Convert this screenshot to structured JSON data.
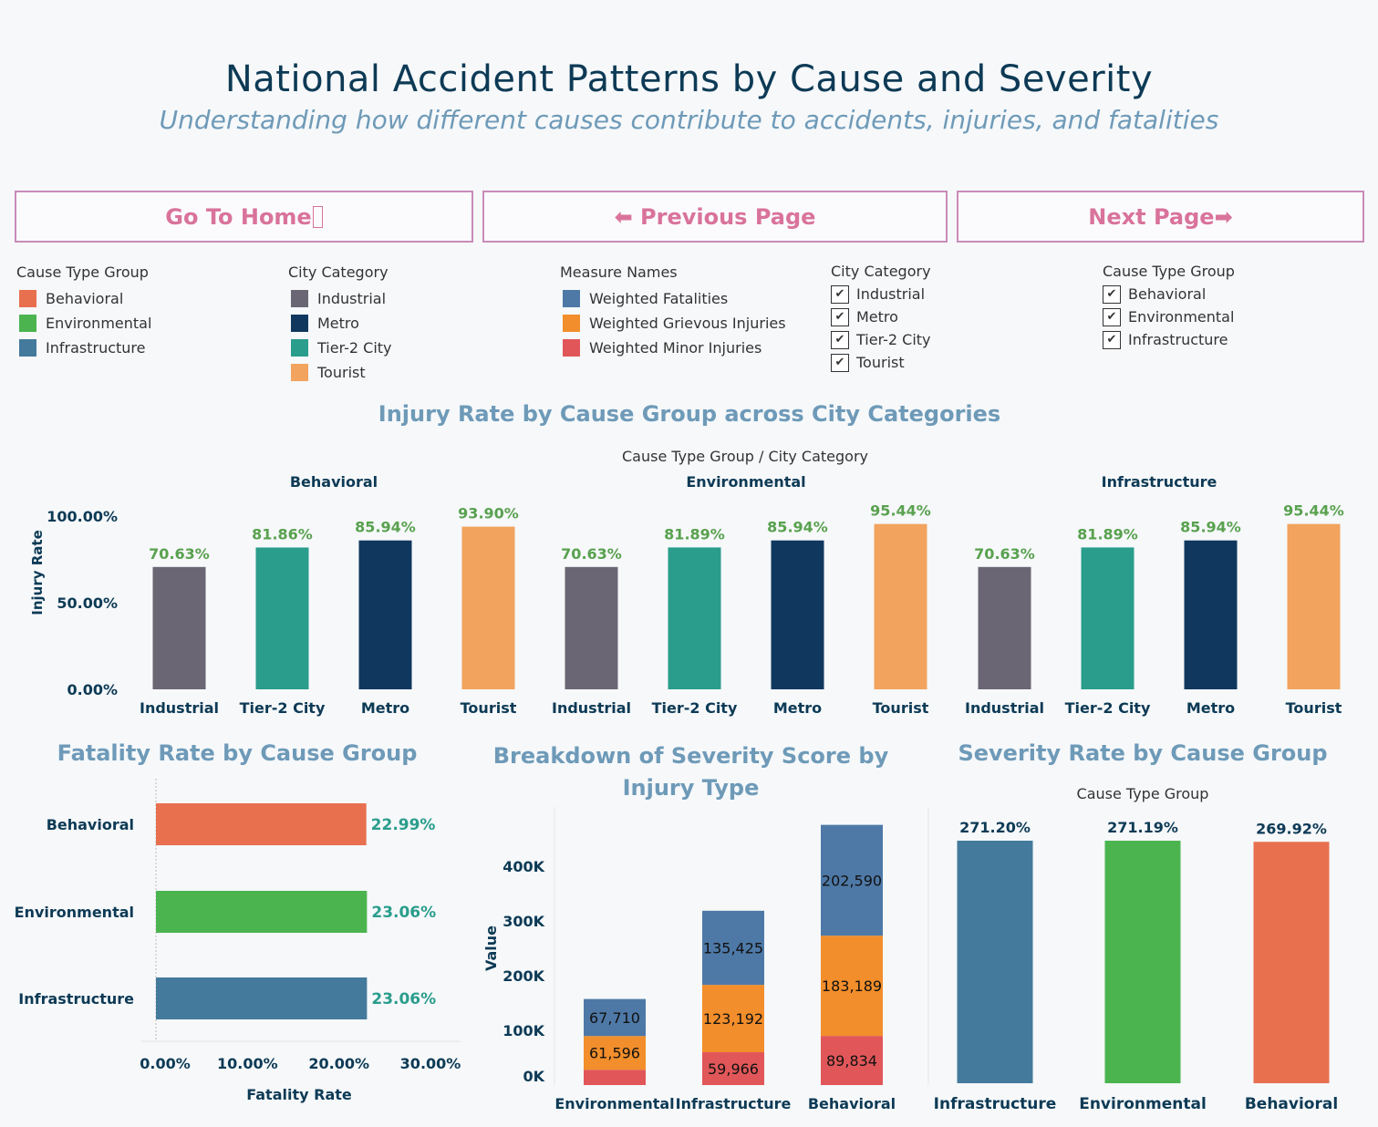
{
  "header": {
    "title": "National Accident Patterns by Cause and Severity",
    "subtitle": "Understanding how different causes contribute to accidents, injuries, and fatalities"
  },
  "nav": {
    "home_label": "Go To Home ",
    "home_icon": "home-icon",
    "prev_label": "⬅ Previous Page",
    "next_label": "Next Page➡"
  },
  "legends": {
    "cause_type_group": {
      "title": "Cause Type Group",
      "items": [
        {
          "label": "Behavioral",
          "color": "#e8704f"
        },
        {
          "label": "Environmental",
          "color": "#4bb44f"
        },
        {
          "label": "Infrastructure",
          "color": "#447a9c"
        }
      ]
    },
    "city_category": {
      "title": "City Category",
      "items": [
        {
          "label": "Industrial",
          "color": "#6b6674"
        },
        {
          "label": "Metro",
          "color": "#10385e"
        },
        {
          "label": "Tier-2 City",
          "color": "#2a9d8c"
        },
        {
          "label": "Tourist",
          "color": "#f2a35e"
        }
      ]
    },
    "measure_names": {
      "title": "Measure Names",
      "items": [
        {
          "label": "Weighted Fatalities",
          "color": "#4e79a7"
        },
        {
          "label": "Weighted Grievous Injuries",
          "color": "#f28e2b"
        },
        {
          "label": "Weighted Minor Injuries",
          "color": "#e15759"
        }
      ]
    }
  },
  "filters": {
    "city_category": {
      "title": "City Category",
      "items": [
        "Industrial",
        "Metro",
        "Tier-2 City",
        "Tourist"
      ]
    },
    "cause_type_group": {
      "title": "Cause Type Group",
      "items": [
        "Behavioral",
        "Environmental",
        "Infrastructure"
      ]
    }
  },
  "chart_data": [
    {
      "type": "bar",
      "title": "Injury Rate by Cause Group across City Categories",
      "header": "Cause Type Group  /  City Category",
      "ylabel": "Injury Rate",
      "yticks": [
        "0.00%",
        "50.00%",
        "100.00%"
      ],
      "ylim": [
        0,
        100
      ],
      "panels": [
        {
          "group": "Behavioral",
          "categories": [
            "Industrial",
            "Tier-2 City",
            "Metro",
            "Tourist"
          ],
          "values": [
            70.63,
            81.86,
            85.94,
            93.9
          ],
          "labels": [
            "70.63%",
            "81.86%",
            "85.94%",
            "93.90%"
          ]
        },
        {
          "group": "Environmental",
          "categories": [
            "Industrial",
            "Tier-2 City",
            "Metro",
            "Tourist"
          ],
          "values": [
            70.63,
            81.89,
            85.94,
            95.44
          ],
          "labels": [
            "70.63%",
            "81.89%",
            "85.94%",
            "95.44%"
          ]
        },
        {
          "group": "Infrastructure",
          "categories": [
            "Industrial",
            "Tier-2 City",
            "Metro",
            "Tourist"
          ],
          "values": [
            70.63,
            81.89,
            85.94,
            95.44
          ],
          "labels": [
            "70.63%",
            "81.89%",
            "85.94%",
            "95.44%"
          ]
        }
      ]
    },
    {
      "type": "bar",
      "orientation": "horizontal",
      "title": "Fatality Rate by Cause Group",
      "xlabel": "Fatality Rate",
      "xticks": [
        "0.00%",
        "10.00%",
        "20.00%",
        "30.00%"
      ],
      "xlim": [
        0,
        30
      ],
      "categories": [
        "Behavioral",
        "Environmental",
        "Infrastructure"
      ],
      "values": [
        22.99,
        23.06,
        23.06
      ],
      "labels": [
        "22.99%",
        "23.06%",
        "23.06%"
      ]
    },
    {
      "type": "bar",
      "stacked": true,
      "title": "Breakdown of Severity Score by Injury Type",
      "ylabel": "Value",
      "yticks": [
        "0K",
        "100K",
        "200K",
        "300K",
        "400K"
      ],
      "categories": [
        "Environmental",
        "Infrastructure",
        "Behavioral"
      ],
      "series": [
        {
          "name": "Weighted Minor Injuries",
          "values": [
            28000,
            59966,
            89834
          ],
          "labels": [
            "",
            "59,966",
            "89,834"
          ]
        },
        {
          "name": "Weighted Grievous Injuries",
          "values": [
            61596,
            123192,
            183189
          ],
          "labels": [
            "61,596",
            "123,192",
            "183,189"
          ]
        },
        {
          "name": "Weighted Fatalities",
          "values": [
            67710,
            135425,
            202590
          ],
          "labels": [
            "67,710",
            "135,425",
            "202,590"
          ]
        }
      ]
    },
    {
      "type": "bar",
      "title": "Severity Rate by Cause Group",
      "header": "Cause Type Group",
      "categories": [
        "Infrastructure",
        "Environmental",
        "Behavioral"
      ],
      "values": [
        271.2,
        271.19,
        269.92
      ],
      "labels": [
        "271.20%",
        "271.19%",
        "269.92%"
      ]
    }
  ]
}
